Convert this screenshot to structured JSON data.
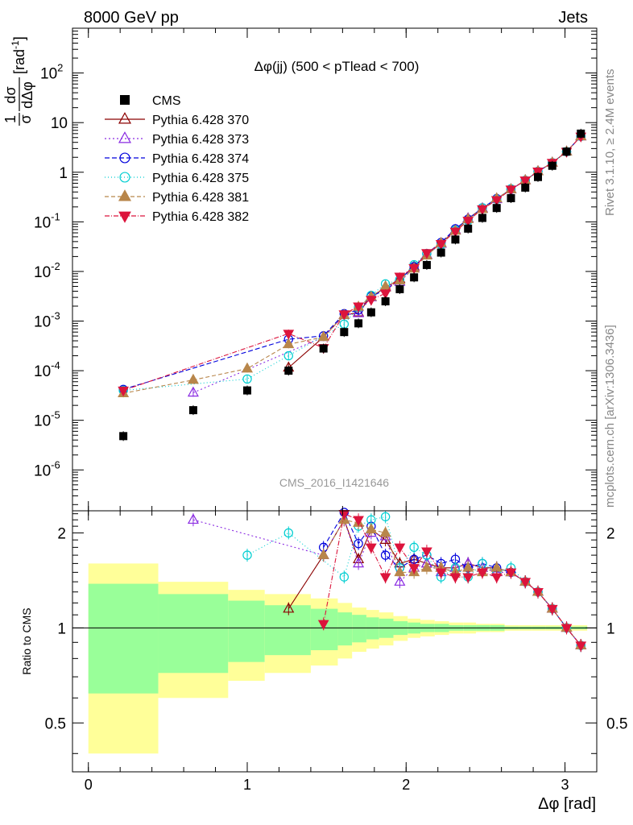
{
  "header": {
    "left": "8000 GeV pp",
    "right": "Jets"
  },
  "side_labels": {
    "rivet": "Rivet 3.1.10, ≥ 2.4M events",
    "mcplots": "mcplots.cern.ch [arXiv:1306.3436]"
  },
  "chart_data": {
    "type": "line",
    "title": "Δφ(jj) (500 < pTlead <  700)",
    "watermark": "CMS_2016_I1421646",
    "xlabel": "Δφ [rad]",
    "ylabel": "1/σ dσ/dΔφ [rad⁻¹]",
    "ylabel_parts": {
      "num": "1",
      "den": "σ",
      "dnum": "dσ",
      "dden": "dΔφ",
      "unit": "[rad",
      "unit_exp": "-1",
      "unit_close": "]"
    },
    "ratio_ylabel": "Ratio to CMS",
    "xlim": [
      -0.1,
      3.2
    ],
    "ylim_main": [
      1.5e-07,
      800
    ],
    "ylim_ratio": [
      0.35,
      2.35
    ],
    "x_ticks": [
      0,
      1,
      2,
      3
    ],
    "x_tick_labels": [
      "0",
      "1",
      "2",
      "3"
    ],
    "y_ticks_main": [
      {
        "base": "10",
        "exp": "-6"
      },
      {
        "base": "10",
        "exp": "-5"
      },
      {
        "base": "10",
        "exp": "-4"
      },
      {
        "base": "10",
        "exp": "-3"
      },
      {
        "base": "10",
        "exp": "-2"
      },
      {
        "base": "10",
        "exp": "-1"
      },
      {
        "base": "1",
        "exp": ""
      },
      {
        "base": "10",
        "exp": ""
      },
      {
        "base": "10",
        "exp": "2"
      }
    ],
    "y_ticks_ratio": [
      "0.5",
      "1",
      "2"
    ],
    "x": [
      0.22,
      0.66,
      1.0,
      1.26,
      1.48,
      1.61,
      1.7,
      1.78,
      1.87,
      1.96,
      2.05,
      2.13,
      2.22,
      2.31,
      2.39,
      2.48,
      2.57,
      2.66,
      2.75,
      2.83,
      2.92,
      3.01,
      3.1
    ],
    "bins": [
      0.0,
      0.44,
      0.88,
      1.11,
      1.4,
      1.57,
      1.66,
      1.75,
      1.83,
      1.92,
      2.01,
      2.09,
      2.18,
      2.27,
      2.36,
      2.44,
      2.53,
      2.62,
      2.71,
      2.79,
      2.88,
      2.97,
      3.05,
      3.14
    ],
    "cms_values": [
      4.8e-06,
      1.6e-05,
      4e-05,
      0.0001,
      0.00028,
      0.0006,
      0.0009,
      0.0015,
      0.0025,
      0.0044,
      0.0076,
      0.0135,
      0.024,
      0.044,
      0.073,
      0.12,
      0.19,
      0.3,
      0.49,
      0.8,
      1.35,
      2.6,
      6.0
    ],
    "band_inner": [
      0.62,
      0.72,
      0.78,
      0.82,
      0.85,
      0.88,
      0.9,
      0.92,
      0.93,
      0.95,
      0.96,
      0.97,
      0.97,
      0.98,
      0.98,
      0.98,
      0.98,
      0.99,
      0.99,
      0.99,
      0.99,
      0.99,
      0.99
    ],
    "band_outer": [
      0.4,
      0.6,
      0.68,
      0.72,
      0.76,
      0.8,
      0.84,
      0.86,
      0.88,
      0.91,
      0.93,
      0.94,
      0.95,
      0.96,
      0.96,
      0.97,
      0.97,
      0.98,
      0.98,
      0.98,
      0.98,
      0.98,
      0.98
    ],
    "series": [
      {
        "name": "Pythia 6.428 370",
        "color": "#8b0000",
        "marker": "triangle-open",
        "dash": "",
        "start": 3,
        "ratio": [
          null,
          null,
          null,
          1.15,
          1.7,
          2.2,
          1.65,
          2.05,
          1.9,
          1.6,
          1.65,
          1.6,
          1.55,
          1.55,
          1.6,
          1.55,
          1.55,
          1.5,
          1.4,
          1.3,
          1.15,
          1.0,
          0.88
        ]
      },
      {
        "name": "Pythia 6.428 373",
        "color": "#8a2be2",
        "marker": "triangle-open",
        "dash": "2,3",
        "start": 1,
        "ratio": [
          null,
          2.2,
          null,
          null,
          1.7,
          2.2,
          1.6,
          2.0,
          1.95,
          1.4,
          1.55,
          1.6,
          1.5,
          1.55,
          1.6,
          1.55,
          1.5,
          1.5,
          1.4,
          1.3,
          1.15,
          1.0,
          0.88
        ]
      },
      {
        "name": "Pythia 6.428 374",
        "color": "#0000dd",
        "marker": "circle-open",
        "dash": "6,3",
        "start": 0,
        "ratio": [
          null,
          null,
          null,
          null,
          1.8,
          2.35,
          1.85,
          2.1,
          1.7,
          1.55,
          1.65,
          1.7,
          1.6,
          1.65,
          1.55,
          1.6,
          1.55,
          1.5,
          1.4,
          1.3,
          1.15,
          1.0,
          0.88
        ]
      },
      {
        "name": "Pythia 6.428 375",
        "color": "#00ced1",
        "marker": "circle-open",
        "dash": "1,3",
        "start": 0,
        "ratio": [
          null,
          null,
          1.7,
          2.0,
          null,
          1.45,
          2.1,
          2.2,
          2.25,
          1.55,
          1.8,
          1.7,
          1.45,
          1.55,
          1.45,
          1.6,
          1.5,
          1.55,
          1.4,
          1.3,
          1.15,
          1.0,
          0.88
        ]
      },
      {
        "name": "Pythia 6.428 381",
        "color": "#b8864b",
        "marker": "triangle-filled",
        "dash": "5,3",
        "start": 0,
        "ratio": [
          null,
          null,
          null,
          null,
          1.7,
          2.2,
          2.15,
          2.05,
          2.0,
          1.5,
          1.5,
          1.55,
          1.55,
          1.5,
          1.55,
          1.5,
          1.55,
          1.5,
          1.4,
          1.3,
          1.15,
          1.0,
          0.88
        ]
      },
      {
        "name": "Pythia 6.428 382",
        "color": "#dc143c",
        "marker": "triangle-down-filled",
        "dash": "6,2,1,2",
        "start": 0,
        "ratio": [
          null,
          null,
          null,
          null,
          1.03,
          2.3,
          2.2,
          1.8,
          1.45,
          1.8,
          1.55,
          1.75,
          1.5,
          1.45,
          1.45,
          1.5,
          1.45,
          1.5,
          1.4,
          1.3,
          1.15,
          1.0,
          0.88
        ]
      }
    ],
    "low_values": {
      "Pythia 6.428 370": [
        null,
        null,
        null,
        null
      ],
      "Pythia 6.428 373": [
        null,
        3.6e-05,
        null,
        null
      ],
      "Pythia 6.428 374": [
        4.2e-05,
        null,
        null,
        0.00043
      ],
      "Pythia 6.428 375": [
        4e-05,
        null,
        6.8e-05,
        0.0002
      ],
      "Pythia 6.428 381": [
        3.5e-05,
        6.5e-05,
        0.00011,
        0.00034
      ],
      "Pythia 6.428 382": [
        4e-05,
        null,
        null,
        0.00056
      ]
    },
    "legend_data_label": "CMS"
  }
}
